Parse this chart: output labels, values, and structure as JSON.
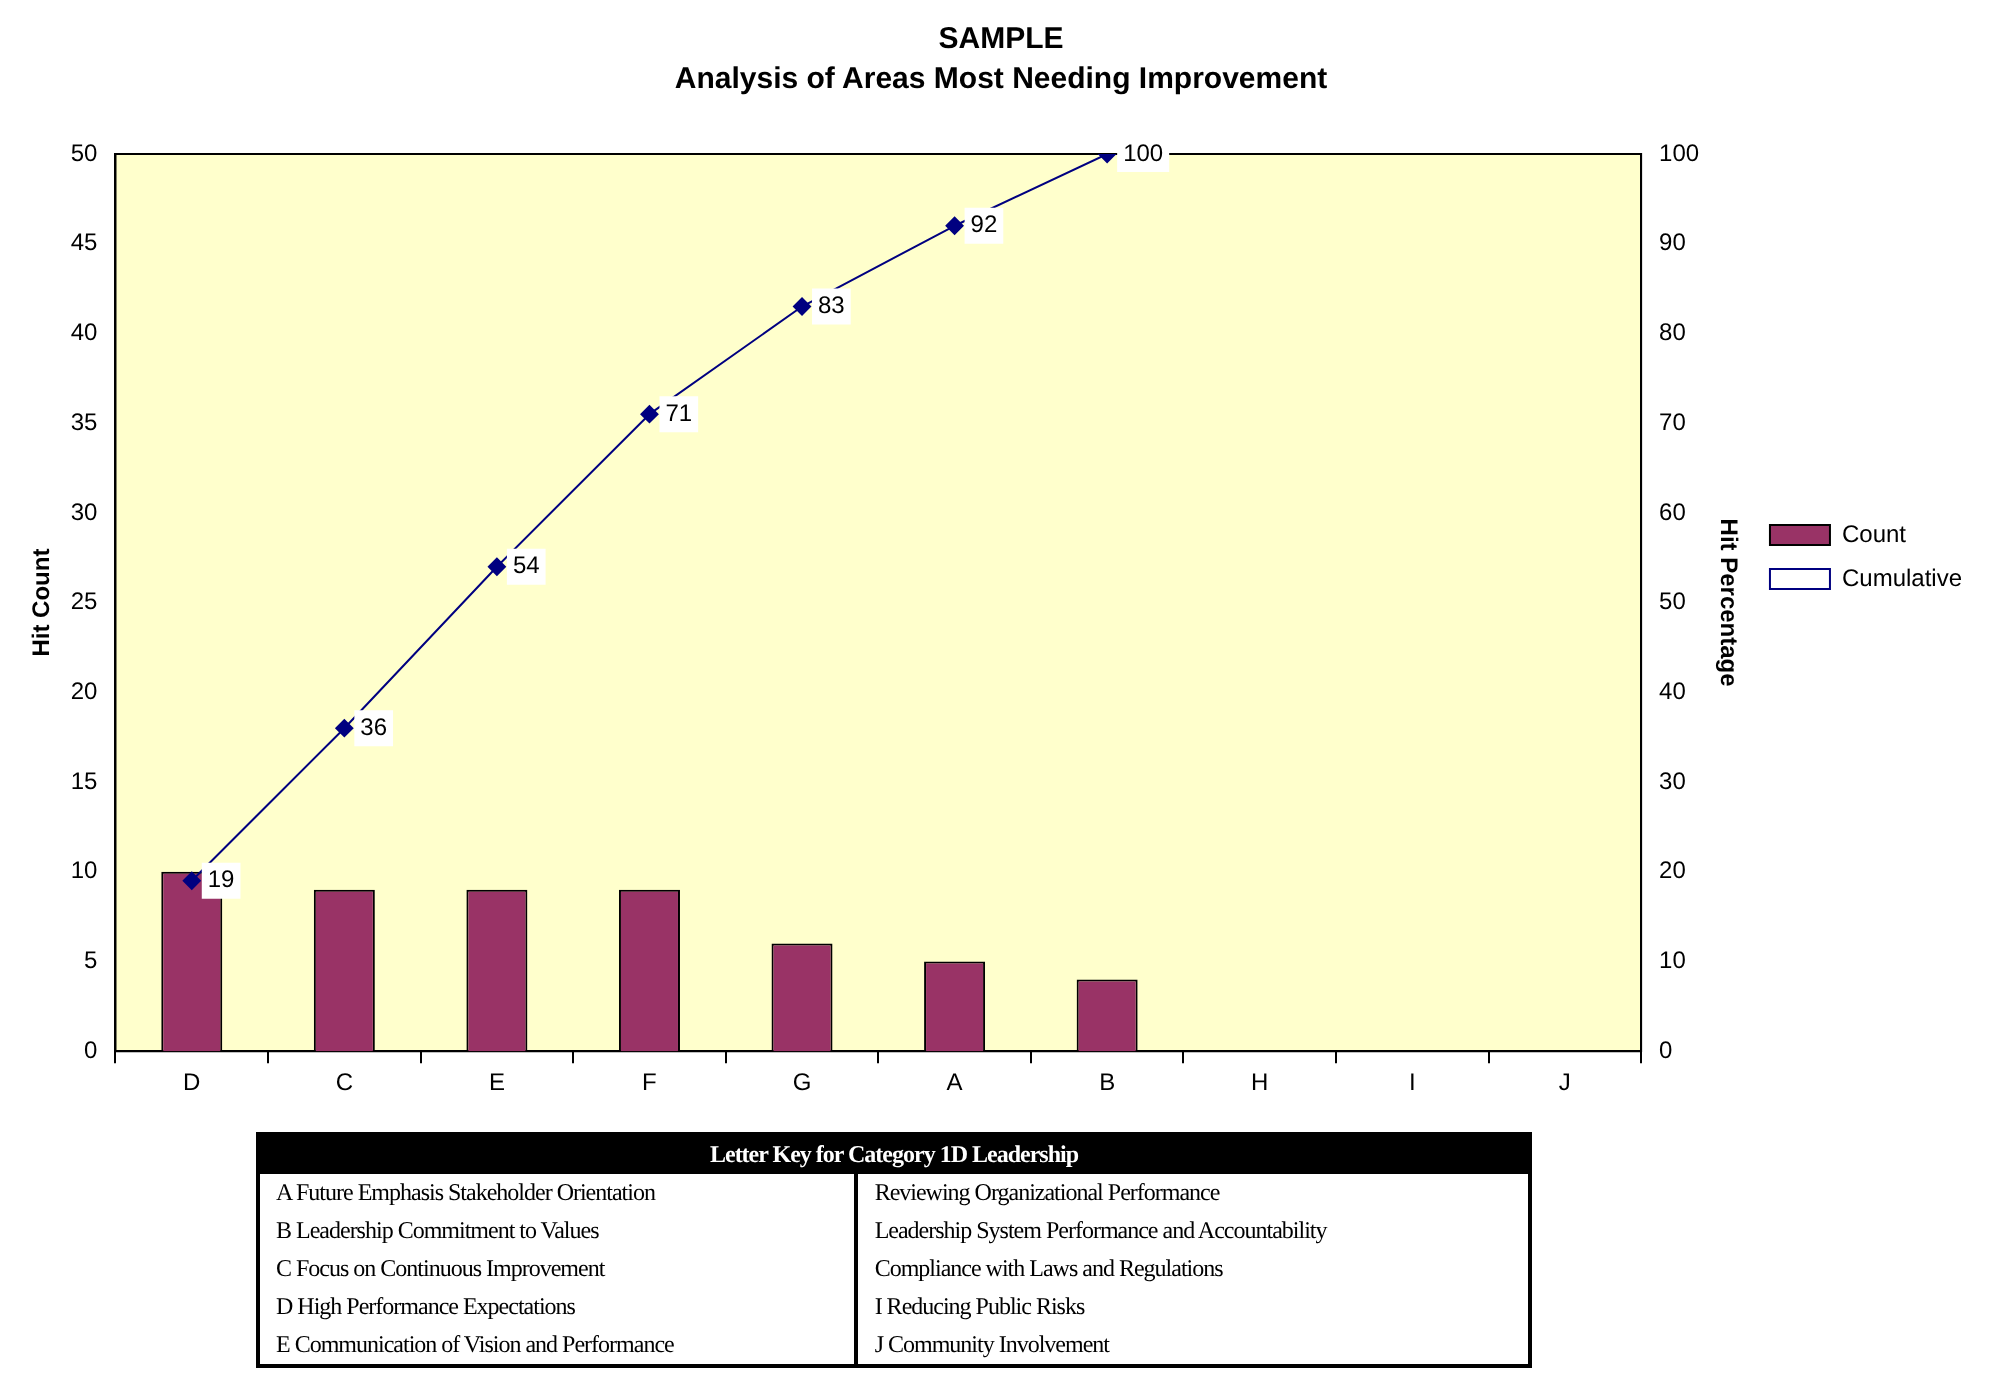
{
  "chart_data": {
    "type": "bar",
    "title": "SAMPLE",
    "subtitle": "Analysis of Areas Most Needing Improvement",
    "ylabel": "Hit Count",
    "y2label": "Hit Percentage",
    "categories": [
      "D",
      "C",
      "E",
      "F",
      "G",
      "A",
      "B",
      "H",
      "I",
      "J"
    ],
    "series": [
      {
        "name": "Count",
        "color": "#993366",
        "values": [
          10,
          9,
          9,
          9,
          6,
          5,
          4,
          0,
          0,
          0
        ]
      },
      {
        "name": "Cumulative",
        "type": "line",
        "axis": "y2",
        "color": "#000080",
        "marker": "diamond",
        "values": [
          19,
          36,
          54,
          71,
          83,
          92,
          100,
          null,
          null,
          null
        ],
        "value_labels": [
          "19",
          "36",
          "54",
          "71",
          "83",
          "92",
          "100",
          null,
          null,
          null
        ]
      }
    ],
    "ylim": [
      0,
      50
    ],
    "yticks": [
      0,
      5,
      10,
      15,
      20,
      25,
      30,
      35,
      40,
      45,
      50
    ],
    "y2lim": [
      0,
      100
    ],
    "y2ticks": [
      0,
      10,
      20,
      30,
      40,
      50,
      60,
      70,
      80,
      90,
      100
    ],
    "legend": "right",
    "grid": false,
    "annotations": [
      "Letter Key for Category 1D Leadership",
      "A Future Emphasis Stakeholder Orientation",
      "B Leadership Commitment to Values",
      "C Focus on Continuous Improvement",
      "D High Performance Expectations",
      "E Communication of Vision and Performance",
      "Reviewing Organizational Performance",
      "Leadership System Performance and Accountability",
      "Compliance with Laws and Regulations",
      "I Reducing Public Risks",
      "J Community Involvement"
    ]
  }
}
